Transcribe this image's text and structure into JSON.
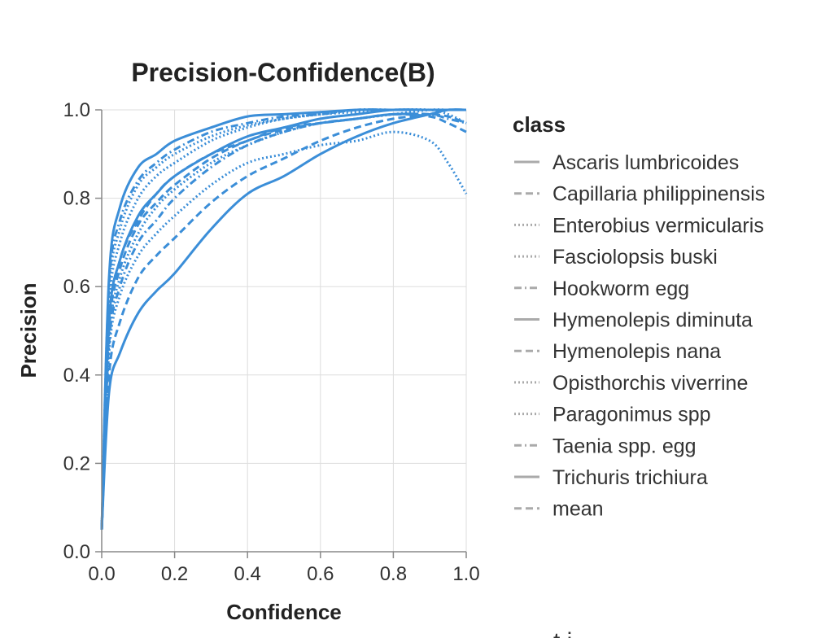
{
  "chart_data": {
    "type": "line",
    "title": "Precision-Confidence(B)",
    "xlabel": "Confidence",
    "ylabel": "Precision",
    "xlim": [
      0,
      1
    ],
    "ylim": [
      0,
      1
    ],
    "x_ticks": [
      "0.0",
      "0.2",
      "0.4",
      "0.6",
      "0.8",
      "1.0"
    ],
    "y_ticks": [
      "0.0",
      "0.2",
      "0.4",
      "0.6",
      "0.8",
      "1.0"
    ],
    "grid": true,
    "legend_title": "class",
    "legend_position": "right",
    "line_color": "#3b8ed8",
    "x": [
      0.0,
      0.02,
      0.05,
      0.1,
      0.15,
      0.2,
      0.3,
      0.4,
      0.5,
      0.6,
      0.7,
      0.8,
      0.9,
      0.95,
      1.0
    ],
    "series": [
      {
        "name": "Ascaris lumbricoides",
        "dash": "solid",
        "values": [
          0.05,
          0.62,
          0.78,
          0.87,
          0.9,
          0.93,
          0.96,
          0.985,
          0.99,
          0.995,
          1.0,
          1.0,
          1.0,
          1.0,
          1.0
        ]
      },
      {
        "name": "Capillaria philippinensis",
        "dash": "dashed",
        "values": [
          0.05,
          0.5,
          0.66,
          0.75,
          0.81,
          0.85,
          0.9,
          0.93,
          0.96,
          0.97,
          0.98,
          0.99,
          0.985,
          0.97,
          0.95
        ]
      },
      {
        "name": "Enterobius vermicularis",
        "dash": "dotted",
        "values": [
          0.05,
          0.55,
          0.7,
          0.8,
          0.85,
          0.88,
          0.93,
          0.96,
          0.98,
          0.99,
          0.995,
          1.0,
          1.0,
          0.99,
          0.97
        ]
      },
      {
        "name": "Fasciolopsis buski",
        "dash": "dotted",
        "values": [
          0.05,
          0.45,
          0.58,
          0.67,
          0.72,
          0.76,
          0.83,
          0.88,
          0.9,
          0.92,
          0.93,
          0.95,
          0.93,
          0.88,
          0.81
        ]
      },
      {
        "name": "Hookworm egg",
        "dash": "dashdot",
        "values": [
          0.05,
          0.6,
          0.75,
          0.84,
          0.88,
          0.91,
          0.95,
          0.97,
          0.985,
          0.99,
          1.0,
          1.0,
          1.0,
          1.0,
          1.0
        ]
      },
      {
        "name": "Hymenolepis diminuta",
        "dash": "solid",
        "values": [
          0.05,
          0.52,
          0.66,
          0.76,
          0.81,
          0.85,
          0.9,
          0.94,
          0.96,
          0.98,
          0.99,
          1.0,
          1.0,
          1.0,
          1.0
        ]
      },
      {
        "name": "Hymenolepis nana",
        "dash": "dashed",
        "values": [
          0.05,
          0.4,
          0.52,
          0.62,
          0.67,
          0.71,
          0.79,
          0.85,
          0.89,
          0.93,
          0.96,
          0.98,
          0.99,
          1.0,
          1.0
        ]
      },
      {
        "name": "Opisthorchis viverrine",
        "dash": "dotted",
        "values": [
          0.05,
          0.48,
          0.62,
          0.72,
          0.78,
          0.82,
          0.88,
          0.92,
          0.95,
          0.97,
          0.98,
          0.99,
          1.0,
          1.0,
          1.0
        ]
      },
      {
        "name": "Paragonimus spp",
        "dash": "dotted",
        "values": [
          0.05,
          0.58,
          0.73,
          0.83,
          0.87,
          0.9,
          0.94,
          0.965,
          0.98,
          0.99,
          1.0,
          1.0,
          1.0,
          1.0,
          1.0
        ]
      },
      {
        "name": "Taenia spp. egg",
        "dash": "dashdot",
        "values": [
          0.05,
          0.47,
          0.6,
          0.7,
          0.75,
          0.8,
          0.87,
          0.92,
          0.95,
          0.97,
          0.98,
          0.99,
          0.99,
          0.98,
          0.97
        ]
      },
      {
        "name": "Trichuris trichiura",
        "dash": "solid",
        "values": [
          0.05,
          0.36,
          0.45,
          0.54,
          0.59,
          0.63,
          0.73,
          0.81,
          0.85,
          0.9,
          0.94,
          0.97,
          0.99,
          1.0,
          1.0
        ]
      },
      {
        "name": "mean",
        "dash": "dashed",
        "values": [
          0.05,
          0.5,
          0.64,
          0.74,
          0.79,
          0.83,
          0.89,
          0.93,
          0.955,
          0.97,
          0.98,
          0.99,
          0.99,
          0.985,
          0.97
        ]
      }
    ]
  },
  "partial_text": "t i"
}
